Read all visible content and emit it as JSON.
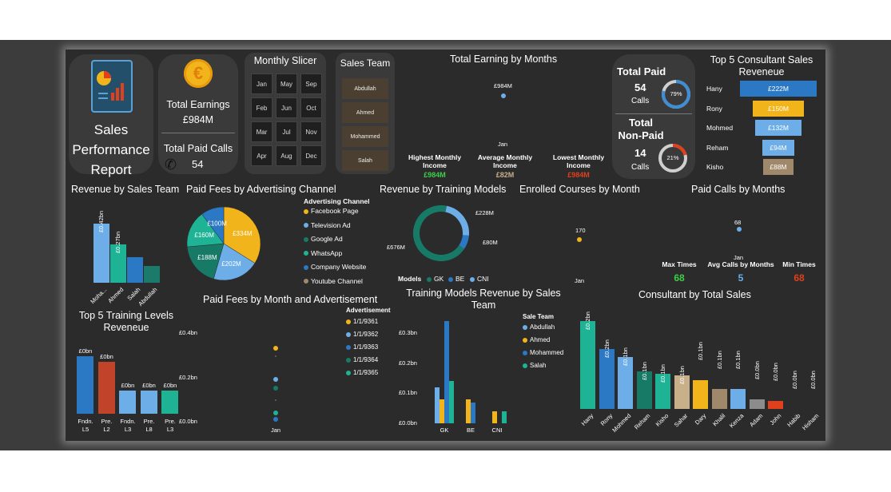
{
  "report": {
    "title_line1": "Sales",
    "title_line2": "Performance",
    "title_line3": "Report"
  },
  "earnings": {
    "label": "Total Earnings",
    "value": "£984M",
    "calls_label": "Total Paid Calls",
    "calls_value": "54",
    "currency_glyph": "€"
  },
  "slicer": {
    "title": "Monthly Slicer",
    "months": [
      "Jan",
      "May",
      "Sep",
      "Feb",
      "Jun",
      "Oct",
      "Mar",
      "Jul",
      "Nov",
      "Apr",
      "Aug",
      "Dec"
    ]
  },
  "team": {
    "title": "Sales Team",
    "members": [
      "Abdullah",
      "Ahmed",
      "Mohammed",
      "Salah"
    ]
  },
  "earning_months": {
    "title": "Total Earning by Months",
    "point_label": "£984M",
    "x_label": "Jan",
    "highest_label": "Highest Monthly Income",
    "highest_value": "£984M",
    "average_label": "Average Monthly Income",
    "average_value": "£82M",
    "lowest_label": "Lowest Monthly Income",
    "lowest_value": "£984M"
  },
  "paid_status": {
    "paid_title": "Total Paid",
    "paid_count": "54",
    "paid_unit": "Calls",
    "paid_pct": "79%",
    "paid_fraction": 0.79,
    "nonpaid_title1": "Total",
    "nonpaid_title2": "Non-Paid",
    "nonpaid_count": "14",
    "nonpaid_unit": "Calls",
    "nonpaid_pct": "21%",
    "nonpaid_fraction": 0.21
  },
  "top5_consultant": {
    "title1": "Top 5 Consultant Sales",
    "title2": "Reveneue",
    "items": [
      {
        "name": "Hany",
        "value": "£222M",
        "num": 222,
        "color": "#2b78c4"
      },
      {
        "name": "Rony",
        "value": "£150M",
        "num": 150,
        "color": "#f2b41b"
      },
      {
        "name": "Mohmed",
        "value": "£132M",
        "num": 132,
        "color": "#6daee8"
      },
      {
        "name": "Reham",
        "value": "£94M",
        "num": 94,
        "color": "#6daee8"
      },
      {
        "name": "Kisho",
        "value": "£88M",
        "num": 88,
        "color": "#a0896a"
      }
    ]
  },
  "rev_sales_team": {
    "title": "Revenue by Sales Team",
    "categories": [
      "Moha...",
      "Ahmed",
      "Salah",
      "Abdullah"
    ],
    "values": [
      0.42,
      0.27,
      0.18,
      0.12
    ],
    "labels": [
      "£0.42bn",
      "£0.27bn",
      "",
      ""
    ],
    "colors": [
      "#6daee8",
      "#1db394",
      "#2b78c4",
      "#1b7a6a"
    ]
  },
  "paid_fees_channel": {
    "title": "Paid Fees by Advertising Channel",
    "legend_title": "Advertising Channel",
    "slices": [
      {
        "name": "Facebook Page",
        "value": 334,
        "label": "£334M",
        "color": "#f2b41b"
      },
      {
        "name": "Television Ad",
        "value": 202,
        "label": "£202M",
        "color": "#6daee8"
      },
      {
        "name": "Google Ad",
        "value": 188,
        "label": "£188M",
        "color": "#177a67"
      },
      {
        "name": "WhatsApp",
        "value": 160,
        "label": "£160M",
        "color": "#1db394"
      },
      {
        "name": "Company Website",
        "value": 100,
        "label": "£100M",
        "color": "#2b78c4"
      },
      {
        "name": "Youtube Channel",
        "value": 0,
        "label": "",
        "color": "#a0896a"
      }
    ]
  },
  "training_models": {
    "title": "Revenue by Training Models",
    "legend_title": "Models",
    "slices": [
      {
        "name": "GK",
        "value": 676,
        "label": "£676M",
        "color": "#177a67"
      },
      {
        "name": "BE",
        "value": 80,
        "label": "£80M",
        "color": "#2b78c4"
      },
      {
        "name": "CNI",
        "value": 228,
        "label": "£228M",
        "color": "#6daee8"
      }
    ]
  },
  "enrolled": {
    "title": "Enrolled Courses by Month",
    "point_label": "170",
    "x_label": "Jan"
  },
  "paid_calls_months": {
    "title": "Paid Calls by Months",
    "point_label": "68",
    "x_label": "Jan",
    "max_label": "Max Times",
    "max_value": "68",
    "avg_label": "Avg Calls by Months",
    "avg_value": "5",
    "min_label": "Min Times",
    "min_value": "68"
  },
  "top5_training": {
    "title1": "Top 5 Training Levels",
    "title2": "Reveneue",
    "items": [
      {
        "cat1": "Fndn.",
        "cat2": "L5",
        "label": "£0bn",
        "value": 0.1,
        "color": "#2b78c4"
      },
      {
        "cat1": "Pre.",
        "cat2": "L2",
        "label": "£0bn",
        "value": 0.09,
        "color": "#c0432a"
      },
      {
        "cat1": "Fndn.",
        "cat2": "L3",
        "label": "£0bn",
        "value": 0.04,
        "color": "#6daee8"
      },
      {
        "cat1": "Pre.",
        "cat2": "L8",
        "label": "£0bn",
        "value": 0.04,
        "color": "#6daee8"
      },
      {
        "cat1": "Pre.",
        "cat2": "L3",
        "label": "£0bn",
        "value": 0.04,
        "color": "#1db394"
      }
    ]
  },
  "fees_month_ad": {
    "title": "Paid Fees by Month and Advertisement",
    "legend_title": "Advertisement",
    "y_ticks": [
      "£0.4bn",
      "£0.2bn",
      "£0.0bn"
    ],
    "x_label": "Jan",
    "series": [
      {
        "name": "1/1/9361",
        "value": 0.33,
        "color": "#f2b41b"
      },
      {
        "name": "1/1/9362",
        "value": 0.19,
        "color": "#6daee8"
      },
      {
        "name": "1/1/9363",
        "value": 0.01,
        "color": "#2b78c4"
      },
      {
        "name": "1/1/9364",
        "value": 0.15,
        "color": "#177a67"
      },
      {
        "name": "1/1/9365",
        "value": 0.04,
        "color": "#1db394"
      }
    ]
  },
  "training_team": {
    "title1": "Training Models Revenue by Sales",
    "title2": "Team",
    "legend_title": "Sale Team",
    "y_ticks": [
      "£0.3bn",
      "£0.2bn",
      "£0.1bn",
      "£0.0bn"
    ],
    "categories": [
      "GK",
      "BE",
      "CNI"
    ],
    "series": [
      {
        "name": "Abdullah",
        "color": "#6daee8",
        "values": [
          0.12,
          0.0,
          0.0
        ]
      },
      {
        "name": "Ahmed",
        "color": "#f2b41b",
        "values": [
          0.08,
          0.08,
          0.04
        ]
      },
      {
        "name": "Mohammed",
        "color": "#2b78c4",
        "values": [
          0.34,
          0.07,
          0.0
        ]
      },
      {
        "name": "Salah",
        "color": "#1db394",
        "values": [
          0.14,
          0.0,
          0.04
        ]
      }
    ]
  },
  "consultant_total": {
    "title": "Consultant by Total Sales",
    "items": [
      {
        "name": "Hany",
        "label": "£0.2bn",
        "value": 0.22,
        "color": "#1db394"
      },
      {
        "name": "Rony",
        "label": "£0.2bn",
        "value": 0.15,
        "color": "#2b78c4"
      },
      {
        "name": "Mohmed",
        "label": "£0.1bn",
        "value": 0.13,
        "color": "#6daee8"
      },
      {
        "name": "Reham",
        "label": "£0.1bn",
        "value": 0.094,
        "color": "#177a67"
      },
      {
        "name": "Kisho",
        "label": "£0.1bn",
        "value": 0.088,
        "color": "#1db394"
      },
      {
        "name": "Sahar",
        "label": "£0.1bn",
        "value": 0.085,
        "color": "#c8b08a"
      },
      {
        "name": "Dary",
        "label": "£0.1bn",
        "value": 0.072,
        "color": "#f2b41b"
      },
      {
        "name": "Khalil",
        "label": "£0.1bn",
        "value": 0.05,
        "color": "#a0896a"
      },
      {
        "name": "Kenza",
        "label": "£0.1bn",
        "value": 0.05,
        "color": "#6daee8"
      },
      {
        "name": "Adam",
        "label": "£0.0bn",
        "value": 0.025,
        "color": "#8c8c8c"
      },
      {
        "name": "John",
        "label": "£0.0bn",
        "value": 0.02,
        "color": "#e0401c"
      },
      {
        "name": "Habib",
        "label": "£0.0bn",
        "value": 0.0,
        "color": "#6daee8"
      },
      {
        "name": "Hisham",
        "label": "£0.0bn",
        "value": 0.0,
        "color": "#6daee8"
      }
    ]
  }
}
